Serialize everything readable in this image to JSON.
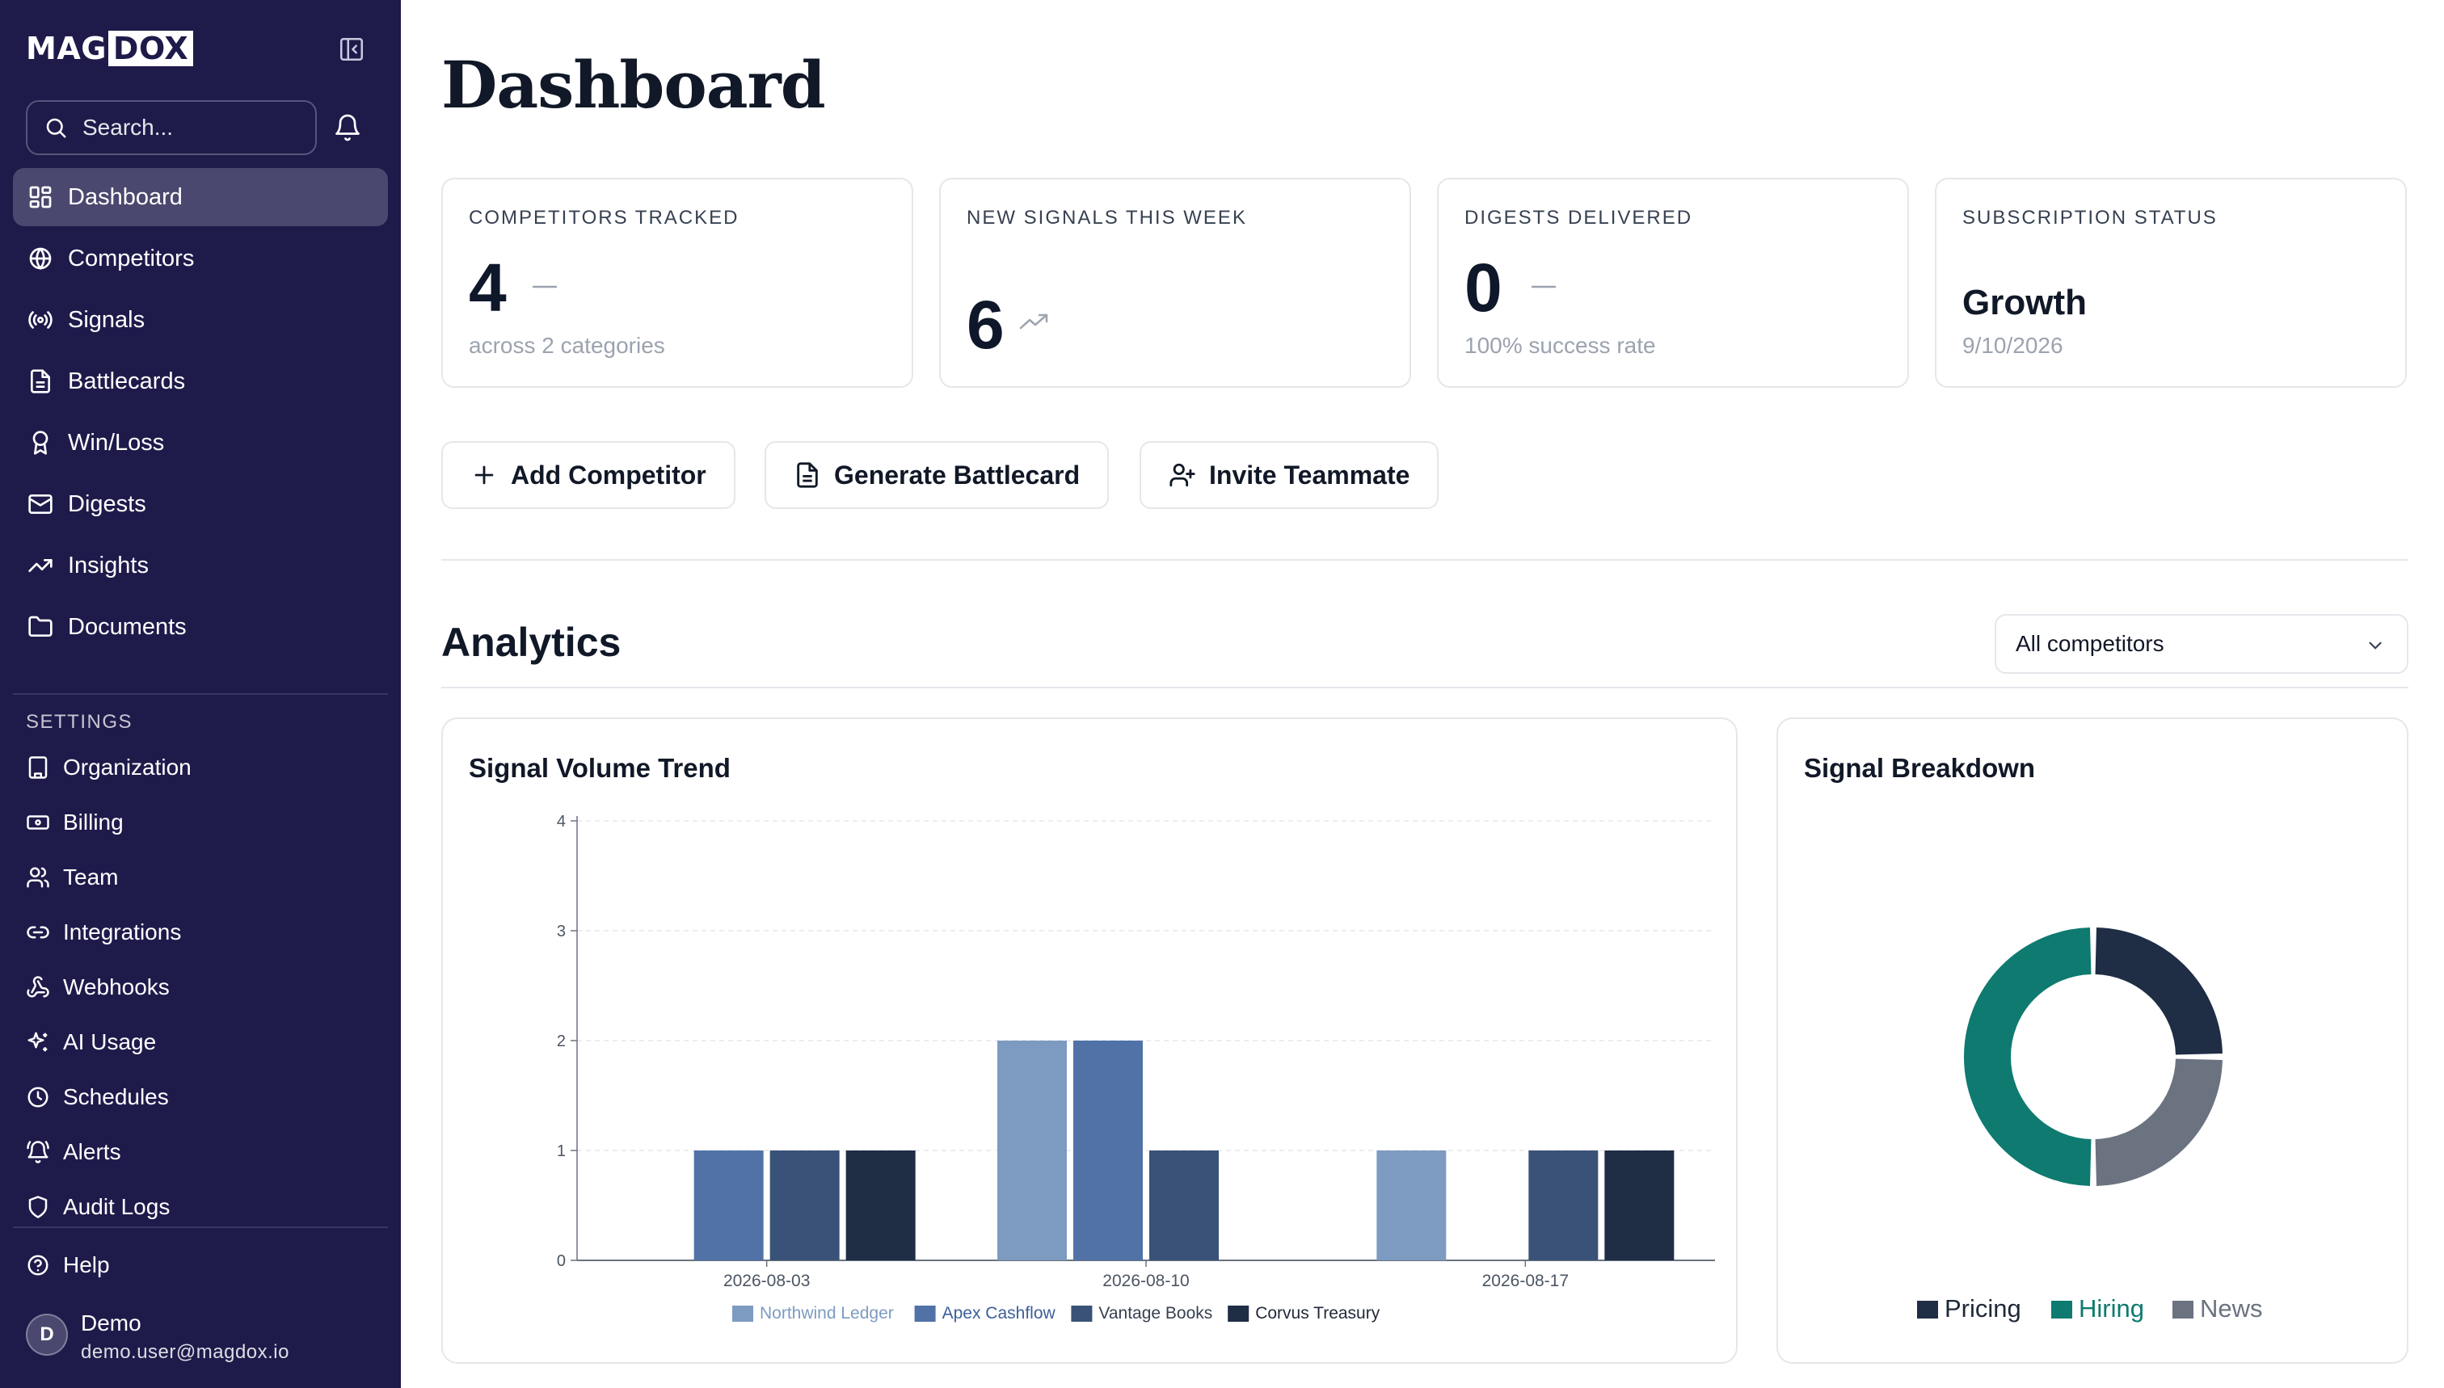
{
  "brand": {
    "logo_part1": "MAG",
    "logo_part2": "DOX"
  },
  "search": {
    "placeholder": "Search..."
  },
  "nav": [
    {
      "label": "Dashboard",
      "icon": "dashboard-icon",
      "active": true
    },
    {
      "label": "Competitors",
      "icon": "globe-icon"
    },
    {
      "label": "Signals",
      "icon": "radio-signal-icon"
    },
    {
      "label": "Battlecards",
      "icon": "document-icon"
    },
    {
      "label": "Win/Loss",
      "icon": "award-icon"
    },
    {
      "label": "Digests",
      "icon": "mail-icon"
    },
    {
      "label": "Insights",
      "icon": "trending-up-icon"
    },
    {
      "label": "Documents",
      "icon": "folder-icon"
    }
  ],
  "settings": {
    "label": "SETTINGS",
    "items": [
      {
        "label": "Organization",
        "icon": "building-icon"
      },
      {
        "label": "Billing",
        "icon": "banknote-icon"
      },
      {
        "label": "Team",
        "icon": "users-icon"
      },
      {
        "label": "Integrations",
        "icon": "link-icon"
      },
      {
        "label": "Webhooks",
        "icon": "webhook-icon"
      },
      {
        "label": "AI Usage",
        "icon": "sparkles-icon"
      },
      {
        "label": "Schedules",
        "icon": "clock-icon"
      },
      {
        "label": "Alerts",
        "icon": "bell-ring-icon"
      },
      {
        "label": "Audit Logs",
        "icon": "shield-icon"
      }
    ]
  },
  "help": {
    "label": "Help"
  },
  "user": {
    "initial": "D",
    "name": "Demo",
    "email": "demo.user@magdox.io"
  },
  "page": {
    "title": "Dashboard"
  },
  "kpis": {
    "competitors": {
      "label": "COMPETITORS TRACKED",
      "value": "4",
      "sub": "across 2 categories",
      "trend": "flat"
    },
    "signals": {
      "label": "NEW SIGNALS THIS WEEK",
      "value": "6",
      "trend": "up"
    },
    "digests": {
      "label": "DIGESTS DELIVERED",
      "value": "0",
      "sub": "100% success rate",
      "trend": "flat"
    },
    "subscription": {
      "label": "SUBSCRIPTION STATUS",
      "plan": "Growth",
      "date": "9/10/2026"
    }
  },
  "actions": {
    "add_competitor": "Add Competitor",
    "generate_battlecard": "Generate Battlecard",
    "invite_teammate": "Invite Teammate"
  },
  "analytics": {
    "title": "Analytics",
    "filter": {
      "selected": "All competitors"
    },
    "trend_card": {
      "title": "Signal Volume Trend"
    },
    "breakdown_card": {
      "title": "Signal Breakdown"
    }
  },
  "colors": {
    "sidebar": "#1e1b4b",
    "northwind": "#7d9bc1",
    "apex": "#5072a7",
    "vantage": "#3a5277",
    "corvus": "#1f2d45",
    "pricing": "#1f2d45",
    "hiring": "#0e7a70",
    "news": "#6b7280"
  },
  "chart_data": [
    {
      "type": "bar",
      "title": "Signal Volume Trend",
      "categories": [
        "2026-08-03",
        "2026-08-10",
        "2026-08-17"
      ],
      "ylim": [
        0,
        4
      ],
      "yticks": [
        "0",
        "1",
        "2",
        "3",
        "4"
      ],
      "grid": true,
      "legend_position": "bottom",
      "series": [
        {
          "name": "Northwind Ledger",
          "values": [
            0,
            2,
            1
          ],
          "color": "#7d9bc1"
        },
        {
          "name": "Apex Cashflow",
          "values": [
            1,
            2,
            0
          ],
          "color": "#5072a7"
        },
        {
          "name": "Vantage Books",
          "values": [
            1,
            1,
            1
          ],
          "color": "#3a5277"
        },
        {
          "name": "Corvus Treasury",
          "values": [
            1,
            0,
            1
          ],
          "color": "#1f2d45"
        }
      ]
    },
    {
      "type": "pie",
      "title": "Signal Breakdown",
      "donut": true,
      "legend_position": "bottom",
      "slices": [
        {
          "name": "Pricing",
          "value": 1,
          "color": "#1f2d45"
        },
        {
          "name": "News",
          "value": 1,
          "color": "#6b7280"
        },
        {
          "name": "Hiring",
          "value": 2,
          "color": "#0e7a70"
        }
      ],
      "legend_order": [
        "Pricing",
        "Hiring",
        "News"
      ]
    }
  ]
}
